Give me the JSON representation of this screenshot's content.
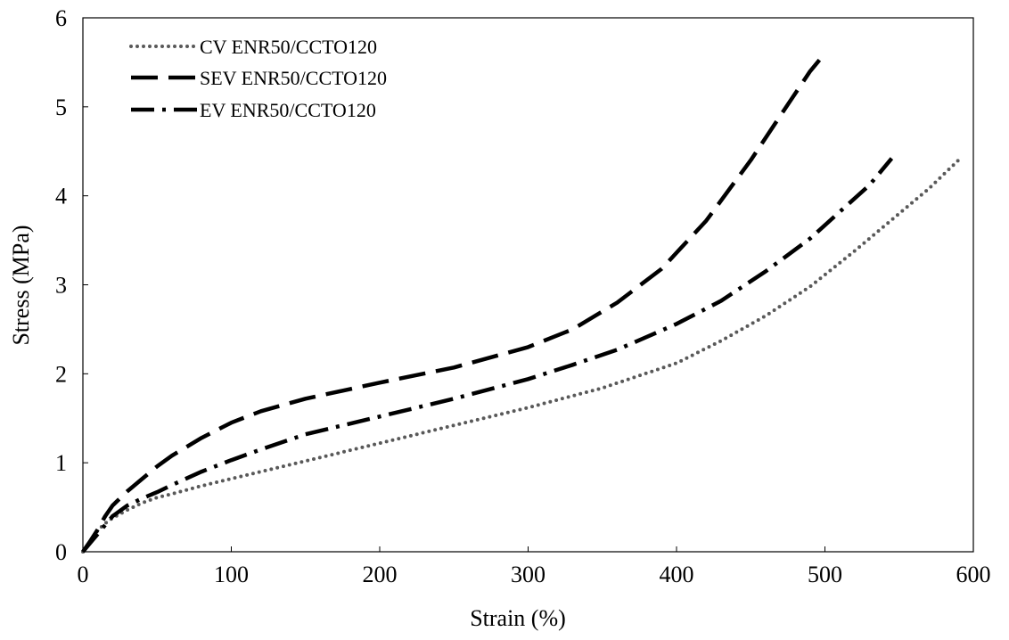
{
  "chart_data": {
    "type": "line",
    "title": "",
    "xlabel": "Strain (%)",
    "ylabel": "Stress (MPa)",
    "xlim": [
      0,
      600
    ],
    "ylim": [
      0,
      6
    ],
    "xticks": [
      "0",
      "100",
      "200",
      "300",
      "400",
      "500",
      "600"
    ],
    "yticks": [
      "0",
      "1",
      "2",
      "3",
      "4",
      "5",
      "6"
    ],
    "grid": false,
    "legend_position": "top-left",
    "series": [
      {
        "name": "CV ENR50/CCTO120",
        "style": "dotted",
        "color": "#595959",
        "x": [
          0,
          5,
          10,
          15,
          20,
          30,
          40,
          50,
          60,
          80,
          100,
          120,
          150,
          200,
          250,
          300,
          350,
          400,
          430,
          460,
          490,
          520,
          550,
          570,
          590
        ],
        "y": [
          0,
          0.12,
          0.24,
          0.32,
          0.38,
          0.47,
          0.55,
          0.61,
          0.65,
          0.74,
          0.82,
          0.9,
          1.02,
          1.22,
          1.42,
          1.62,
          1.84,
          2.12,
          2.37,
          2.65,
          2.98,
          3.38,
          3.8,
          4.08,
          4.4
        ]
      },
      {
        "name": "SEV ENR50/CCTO120",
        "style": "long-dash",
        "color": "#000000",
        "x": [
          0,
          5,
          10,
          15,
          20,
          30,
          40,
          50,
          60,
          70,
          80,
          100,
          120,
          150,
          200,
          250,
          300,
          330,
          360,
          390,
          420,
          450,
          470,
          490,
          500
        ],
        "y": [
          0,
          0.12,
          0.25,
          0.4,
          0.52,
          0.68,
          0.82,
          0.96,
          1.08,
          1.18,
          1.28,
          1.45,
          1.58,
          1.72,
          1.9,
          2.07,
          2.3,
          2.5,
          2.8,
          3.18,
          3.72,
          4.4,
          4.9,
          5.4,
          5.6
        ]
      },
      {
        "name": "EV ENR50/CCTO120",
        "style": "dash-dot",
        "color": "#000000",
        "x": [
          0,
          5,
          10,
          15,
          20,
          30,
          40,
          50,
          60,
          80,
          100,
          120,
          150,
          200,
          250,
          300,
          330,
          360,
          400,
          430,
          460,
          490,
          510,
          530,
          545
        ],
        "y": [
          0,
          0.1,
          0.2,
          0.3,
          0.4,
          0.52,
          0.6,
          0.67,
          0.75,
          0.9,
          1.03,
          1.15,
          1.32,
          1.52,
          1.72,
          1.94,
          2.1,
          2.27,
          2.56,
          2.82,
          3.15,
          3.52,
          3.82,
          4.12,
          4.42
        ]
      }
    ]
  }
}
